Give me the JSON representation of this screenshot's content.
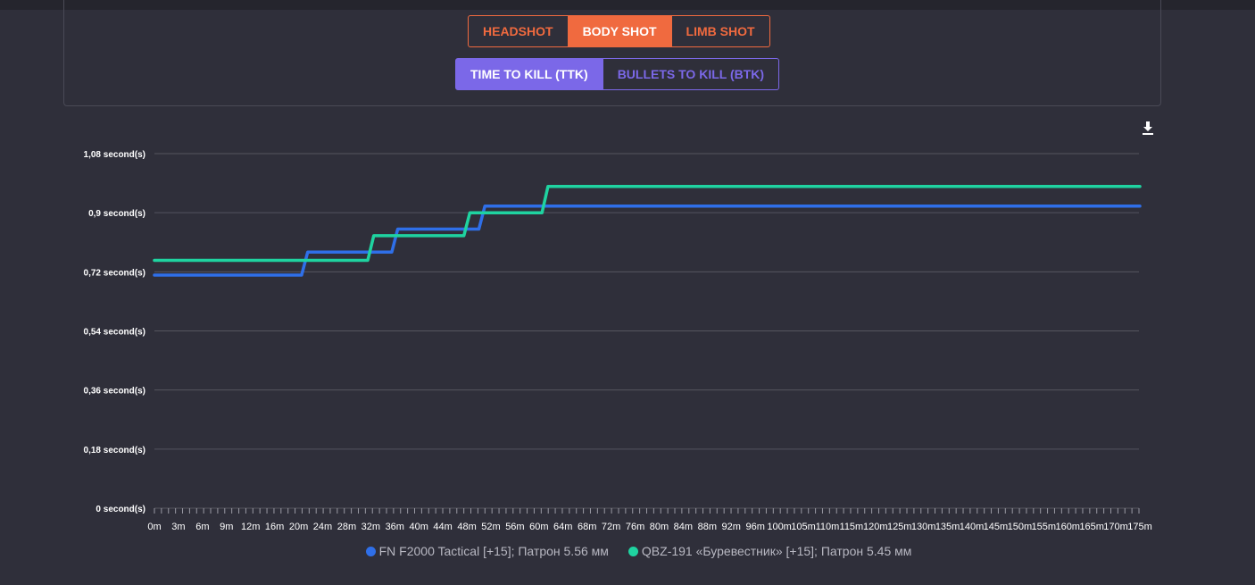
{
  "shot_buttons": [
    {
      "label": "HEADSHOT",
      "active": false
    },
    {
      "label": "BODY SHOT",
      "active": true
    },
    {
      "label": "LIMB SHOT",
      "active": false
    }
  ],
  "mode_buttons": [
    {
      "label": "TIME TO KILL (TTK)",
      "active": true
    },
    {
      "label": "BULLETS TO KILL (BTK)",
      "active": false
    }
  ],
  "download_icon": "download-icon",
  "colors": {
    "accent_orange": "#f06a3f",
    "accent_purple": "#7b68e8",
    "series_1": "#2f6fe8",
    "series_2": "#1fd3a0"
  },
  "chart_data": {
    "type": "line",
    "step": true,
    "title": "",
    "xlabel": "",
    "ylabel": "",
    "ylim": [
      0,
      1.08
    ],
    "y_ticks": [
      {
        "value": 0,
        "label": "0 second(s)"
      },
      {
        "value": 0.18,
        "label": "0,18 second(s)"
      },
      {
        "value": 0.36,
        "label": "0,36 second(s)"
      },
      {
        "value": 0.54,
        "label": "0,54 second(s)"
      },
      {
        "value": 0.72,
        "label": "0,72 second(s)"
      },
      {
        "value": 0.9,
        "label": "0,9 second(s)"
      },
      {
        "value": 1.08,
        "label": "1,08 second(s)"
      }
    ],
    "x_labels": [
      "0m",
      "3m",
      "6m",
      "9m",
      "12m",
      "16m",
      "20m",
      "24m",
      "28m",
      "32m",
      "36m",
      "40m",
      "44m",
      "48m",
      "52m",
      "56m",
      "60m",
      "64m",
      "68m",
      "72m",
      "76m",
      "80m",
      "84m",
      "88m",
      "92m",
      "96m",
      "100m",
      "105m",
      "110m",
      "115m",
      "120m",
      "125m",
      "130m",
      "135m",
      "140m",
      "145m",
      "150m",
      "155m",
      "160m",
      "165m",
      "170m",
      "175m"
    ],
    "x_range": [
      0,
      175
    ],
    "grid": true,
    "legend_position": "bottom",
    "series": [
      {
        "name": "FN F2000 Tactical [+15]; Патрон 5.56 мм",
        "color": "#2f6fe8",
        "points": [
          [
            0,
            0.71
          ],
          [
            20.5,
            0.71
          ],
          [
            21.5,
            0.78
          ],
          [
            35.5,
            0.78
          ],
          [
            36.5,
            0.85
          ],
          [
            50,
            0.85
          ],
          [
            51,
            0.92
          ],
          [
            175,
            0.92
          ]
        ]
      },
      {
        "name": "QBZ-191 «Буревестник» [+15]; Патрон 5.45 мм",
        "color": "#1fd3a0",
        "points": [
          [
            0,
            0.755
          ],
          [
            31.5,
            0.755
          ],
          [
            32.5,
            0.83
          ],
          [
            47.5,
            0.83
          ],
          [
            48.5,
            0.9
          ],
          [
            60.5,
            0.9
          ],
          [
            61.5,
            0.98
          ],
          [
            175,
            0.98
          ]
        ]
      }
    ]
  }
}
